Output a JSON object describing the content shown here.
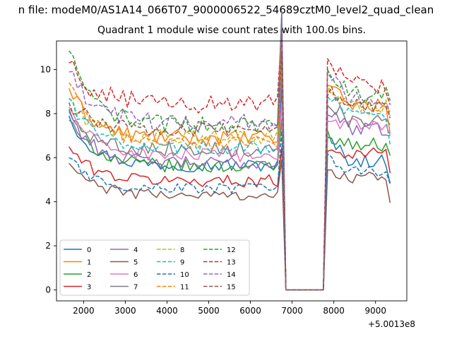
{
  "chart_data": {
    "type": "line",
    "suptitle": "n file: modeM0/AS1A14_066T07_9000006522_54689cztM0_level2_quad_clean",
    "title": "Quadrant 1 module wise count rates with 100.0s bins.",
    "xlabel": "",
    "ylabel": "",
    "x_offset_label": "+5.0013e8",
    "xlim": [
      1350,
      9750
    ],
    "ylim": [
      -0.5,
      11.3
    ],
    "x_ticks": [
      2000,
      3000,
      4000,
      5000,
      6000,
      7000,
      8000,
      9000
    ],
    "y_ticks": [
      0,
      2,
      4,
      6,
      8,
      10
    ],
    "grid": false,
    "legend": {
      "placement": "lower-left",
      "columns": 4
    },
    "x": {
      "start": 1650,
      "step": 100,
      "count": 78
    },
    "gap": {
      "drop_start": 6700,
      "zero_start": 6800,
      "zero_end": 7800,
      "recover": 7900
    },
    "series": [
      {
        "name": "0",
        "color": "#1f77b4",
        "dash": "solid",
        "before": 5.65,
        "after": 5.85,
        "first": 7.9,
        "peak_before": 6.5,
        "peak_after": 6.8,
        "last": 4.85,
        "noise": 0.3
      },
      {
        "name": "1",
        "color": "#ff7f0e",
        "dash": "solid",
        "before": 6.9,
        "after": 8.4,
        "first": 9.15,
        "peak_before": 7.7,
        "peak_after": 9.4,
        "last": 7.1,
        "noise": 0.35
      },
      {
        "name": "2",
        "color": "#2ca02c",
        "dash": "solid",
        "before": 5.6,
        "after": 6.6,
        "first": 8.2,
        "peak_before": 6.7,
        "peak_after": 7.0,
        "last": 6.1,
        "noise": 0.3
      },
      {
        "name": "3",
        "color": "#d62728",
        "dash": "solid",
        "before": 4.95,
        "after": 6.2,
        "first": 6.5,
        "peak_before": 5.7,
        "peak_after": 6.3,
        "last": 5.3,
        "noise": 0.28
      },
      {
        "name": "4",
        "color": "#9467bd",
        "dash": "solid",
        "before": 5.75,
        "after": 7.3,
        "first": 8.1,
        "peak_before": 6.6,
        "peak_after": 8.1,
        "last": 7.0,
        "noise": 0.3
      },
      {
        "name": "5",
        "color": "#8c564b",
        "dash": "solid",
        "before": 4.3,
        "after": 5.1,
        "first": 5.75,
        "peak_before": 4.9,
        "peak_after": 5.3,
        "last": 3.95,
        "noise": 0.25
      },
      {
        "name": "6",
        "color": "#e377c2",
        "dash": "solid",
        "before": 6.1,
        "after": 7.5,
        "first": 8.3,
        "peak_before": 7.1,
        "peak_after": 7.7,
        "last": 7.0,
        "noise": 0.3
      },
      {
        "name": "7",
        "color": "#7f7f7f",
        "dash": "solid",
        "before": 6.4,
        "after": 7.6,
        "first": 7.7,
        "peak_before": 7.5,
        "peak_after": 8.6,
        "last": 7.5,
        "noise": 0.35
      },
      {
        "name": "8",
        "color": "#bcbd22",
        "dash": "dashed",
        "before": 6.9,
        "after": 8.3,
        "first": 8.7,
        "peak_before": 7.7,
        "peak_after": 9.0,
        "last": 7.9,
        "noise": 0.35
      },
      {
        "name": "9",
        "color": "#17becf",
        "dash": "dashed",
        "before": 6.45,
        "after": 7.9,
        "first": 8.7,
        "peak_before": 7.4,
        "peak_after": 8.8,
        "last": 6.6,
        "noise": 0.3
      },
      {
        "name": "10",
        "color": "#1f77b4",
        "dash": "dashed",
        "before": 4.6,
        "after": 5.4,
        "first": 6.0,
        "peak_before": 5.3,
        "peak_after": 5.9,
        "last": 4.8,
        "noise": 0.25
      },
      {
        "name": "11",
        "color": "#ff7f0e",
        "dash": "dashed",
        "before": 6.7,
        "after": 8.2,
        "first": 9.4,
        "peak_before": 7.3,
        "peak_after": 9.0,
        "last": 7.9,
        "noise": 0.3
      },
      {
        "name": "12",
        "color": "#2ca02c",
        "dash": "dashed",
        "before": 7.5,
        "after": 8.9,
        "first": 10.85,
        "peak_before": 8.2,
        "peak_after": 10.1,
        "last": 8.6,
        "noise": 0.4
      },
      {
        "name": "13",
        "color": "#d62728",
        "dash": "dashed",
        "before": 8.45,
        "after": 9.3,
        "first": 10.3,
        "peak_before": 9.8,
        "peak_after": 10.1,
        "last": 8.4,
        "noise": 0.45
      },
      {
        "name": "14",
        "color": "#9467bd",
        "dash": "dashed",
        "before": 7.6,
        "after": 8.6,
        "first": 9.9,
        "peak_before": 8.3,
        "peak_after": 9.8,
        "last": 8.1,
        "noise": 0.4
      },
      {
        "name": "15",
        "color": "#8c564b",
        "dash": "dashed",
        "before": 7.3,
        "after": 8.3,
        "first": 8.5,
        "peak_before": 8.0,
        "peak_after": 9.0,
        "last": 7.8,
        "noise": 0.35
      }
    ]
  }
}
